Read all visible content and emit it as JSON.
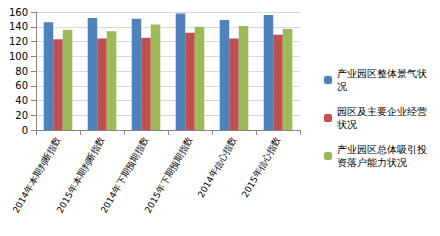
{
  "chart_data": {
    "type": "bar",
    "categories": [
      "2014年本期判断指数",
      "2015年本期判断指数",
      "2014年下期预期指数",
      "2015年下期预期指数",
      "2014年信心指数",
      "2015年信心指数"
    ],
    "series": [
      {
        "name": "产业园区整体景气状况",
        "color": "#4F81BD",
        "values": [
          146,
          152,
          151,
          158,
          149,
          156
        ]
      },
      {
        "name": "园区及主要企业经营状况",
        "color": "#C0504D",
        "values": [
          123,
          124,
          125,
          132,
          124,
          129
        ]
      },
      {
        "name": "产业园区总体吸引投资落户能力状况",
        "color": "#9BBB59",
        "values": [
          136,
          134,
          143,
          140,
          141,
          137
        ]
      }
    ],
    "ylim": [
      0,
      160
    ],
    "yticks": [
      0,
      20,
      40,
      60,
      80,
      100,
      120,
      140,
      160
    ],
    "grid": true,
    "legend": "right"
  }
}
